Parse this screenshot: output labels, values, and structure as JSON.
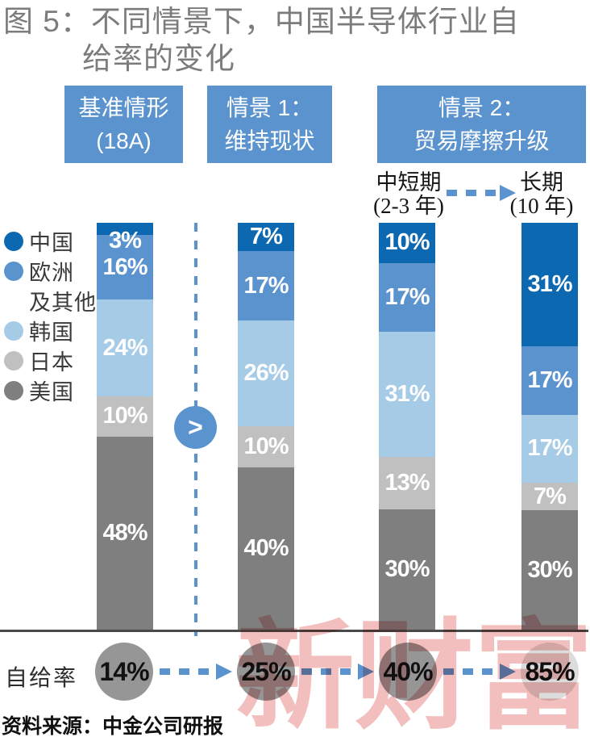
{
  "title": {
    "line1": "图 5：不同情景下，中国半导体行业自",
    "line2": "给率的变化"
  },
  "colors": {
    "china_dark_blue": "#0B68B1",
    "europe_medium_blue": "#5B93CE",
    "korea_light_blue": "#A5CBE7",
    "japan_light_gray": "#C0C0C0",
    "usa_dark_gray": "#7F7F7F",
    "header_box_blue": "#5B93CE",
    "arrow_blue": "#5B93CE",
    "axis_gray": "#4A4A4A",
    "circle_gray": "#969696",
    "circle_light_gray": "#DCDCDC",
    "watermark_pink": "#E57F7D"
  },
  "scenario_boxes": [
    {
      "lines": [
        "基准情形",
        "(18A)"
      ]
    },
    {
      "lines": [
        "情景 1：",
        "维持现状"
      ]
    },
    {
      "lines": [
        "情景 2：",
        "贸易摩擦升级"
      ]
    }
  ],
  "sub_labels": [
    {
      "lines": [
        "中短期",
        "(2-3 年)"
      ]
    },
    {
      "lines": [
        "长期",
        "(10 年)"
      ]
    }
  ],
  "legend": {
    "rows": [
      {
        "dot": "#0B68B1",
        "text": "中国"
      },
      {
        "dot": "#5B93CE",
        "text": "欧洲"
      },
      {
        "dot": null,
        "text": "及其他"
      },
      {
        "dot": "#A5CBE7",
        "text": "韩国"
      },
      {
        "dot": "#C0C0C0",
        "text": "日本"
      },
      {
        "dot": "#7F7F7F",
        "text": "美国"
      }
    ]
  },
  "chart_data": {
    "type": "bar",
    "stacked": true,
    "title": "图5：不同情景下，中国半导体行业自给率的变化",
    "categories": [
      "基准情形(18A)",
      "情景1：维持现状",
      "情景2：贸易摩擦升级 中短期(2-3年)",
      "情景2：贸易摩擦升级 长期(10年)"
    ],
    "series": [
      {
        "name": "中国",
        "key": "china",
        "color": "#0B68B1",
        "values": [
          3,
          7,
          10,
          31
        ]
      },
      {
        "name": "欧洲及其他",
        "key": "europe-others",
        "color": "#5B93CE",
        "values": [
          16,
          17,
          17,
          17
        ]
      },
      {
        "name": "韩国",
        "key": "korea",
        "color": "#A5CBE7",
        "values": [
          24,
          26,
          31,
          17
        ]
      },
      {
        "name": "日本",
        "key": "japan",
        "color": "#C0C0C0",
        "values": [
          10,
          10,
          13,
          7
        ]
      },
      {
        "name": "美国",
        "key": "usa",
        "color": "#7F7F7F",
        "values": [
          48,
          40,
          30,
          30
        ]
      }
    ],
    "unit": "%",
    "legend_position": "left",
    "grid": false
  },
  "comparison": {
    "symbol": ">"
  },
  "self_sufficiency": {
    "label": "自给率",
    "items": [
      {
        "text": "14%",
        "style": "gray"
      },
      {
        "text": "25%",
        "style": "gray"
      },
      {
        "text": "40%",
        "style": "gray"
      },
      {
        "text": "85%",
        "style": "light"
      }
    ]
  },
  "source": "资料来源：中金公司研报",
  "watermark": "新财富"
}
